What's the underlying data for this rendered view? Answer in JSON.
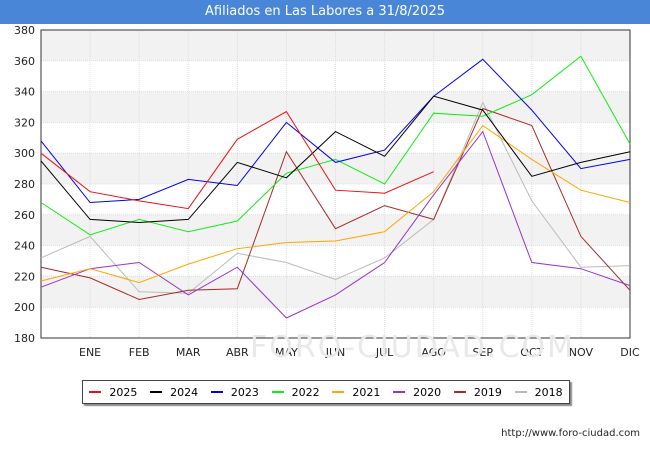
{
  "chart_data": {
    "type": "line",
    "title": "Afiliados en Las Labores a 31/8/2025",
    "categories": [
      "",
      "ENE",
      "FEB",
      "MAR",
      "ABR",
      "MAY",
      "JUN",
      "JUL",
      "AGO",
      "SEP",
      "OCT",
      "NOV",
      "DIC"
    ],
    "ylim": [
      180,
      380
    ],
    "yticks": [
      180,
      200,
      220,
      240,
      260,
      280,
      300,
      320,
      340,
      360,
      380
    ],
    "grid": true,
    "legend_position": "bottom",
    "series": [
      {
        "name": "2025",
        "color": "#ee1111",
        "values": [
          300,
          275,
          269,
          264,
          309,
          327,
          276,
          274,
          288,
          null,
          null,
          null,
          null
        ]
      },
      {
        "name": "2024",
        "color": "#000000",
        "values": [
          295,
          257,
          255,
          257,
          294,
          284,
          314,
          298,
          337,
          328,
          285,
          294,
          301
        ]
      },
      {
        "name": "2023",
        "color": "#0000ee",
        "values": [
          308,
          268,
          270,
          283,
          279,
          320,
          294,
          302,
          337,
          361,
          328,
          290,
          296
        ]
      },
      {
        "name": "2022",
        "color": "#11ee11",
        "values": [
          268,
          247,
          257,
          249,
          256,
          287,
          296,
          280,
          326,
          324,
          338,
          363,
          306
        ]
      },
      {
        "name": "2021",
        "color": "#ffa500",
        "values": [
          217,
          225,
          216,
          228,
          238,
          242,
          243,
          249,
          275,
          318,
          296,
          276,
          268
        ]
      },
      {
        "name": "2020",
        "color": "#9932cc",
        "values": [
          213,
          225,
          229,
          208,
          226,
          193,
          208,
          229,
          273,
          314,
          229,
          225,
          214
        ]
      },
      {
        "name": "2019",
        "color": "#a52a2a",
        "values": [
          226,
          219,
          205,
          211,
          212,
          301,
          251,
          266,
          257,
          329,
          318,
          246,
          211
        ]
      },
      {
        "name": "2018",
        "color": "#bbbbbb",
        "values": [
          232,
          246,
          210,
          209,
          235,
          229,
          218,
          232,
          257,
          333,
          269,
          226,
          227
        ]
      }
    ]
  },
  "footer": {
    "source": "http://www.foro-ciudad.com",
    "watermark": "FORO-CIUDAD.COM"
  }
}
